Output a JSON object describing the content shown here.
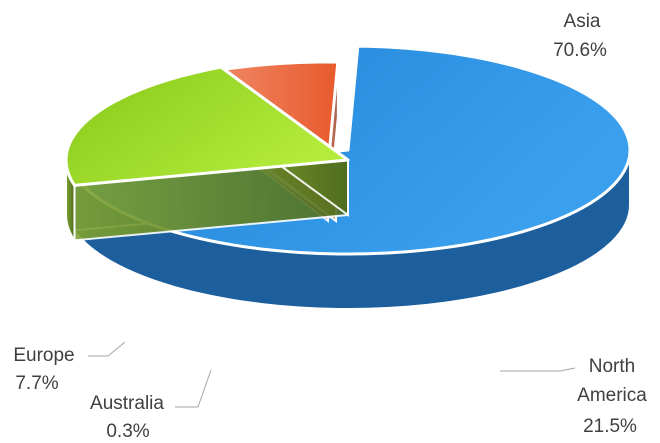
{
  "chart_data": {
    "type": "pie",
    "variant": "3d-exploded",
    "title": "",
    "slices": [
      {
        "label": "Asia",
        "value": 70.6,
        "value_label": "70.6%",
        "color": "#2e8fe0"
      },
      {
        "label": "North America",
        "label_lines": [
          "North",
          "America"
        ],
        "value": 21.5,
        "value_label": "21.5%",
        "color": "#8ed11f"
      },
      {
        "label": "Australia",
        "value": 0.3,
        "value_label": "0.3%",
        "color": "#d7a24a"
      },
      {
        "label": "Europe",
        "value": 7.7,
        "value_label": "7.7%",
        "color": "#e7704a"
      }
    ],
    "legend": "none",
    "data_labels": "outside-with-leader-lines"
  }
}
